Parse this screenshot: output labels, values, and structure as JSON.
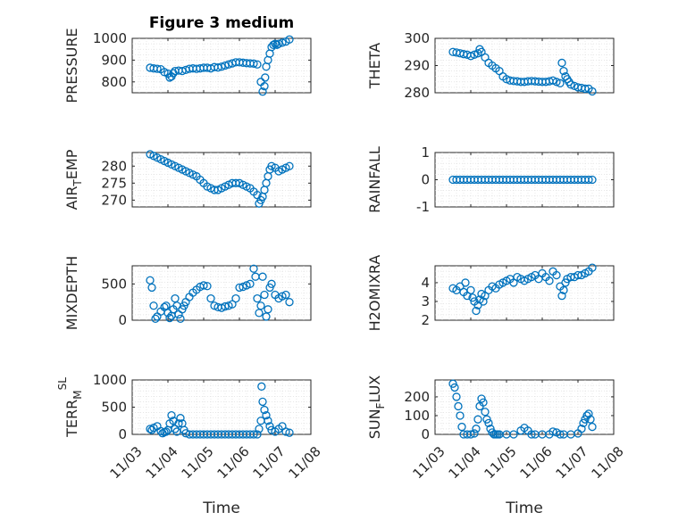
{
  "chart_data": [
    {
      "type": "scatter",
      "title": "Figure 3 medium",
      "ylabel": "PRESSURE",
      "ylabel_sub": "",
      "ylabel_sup": "",
      "ylabel_tail": "",
      "ylim": [
        750,
        1000
      ],
      "yticks": [
        800,
        900,
        1000
      ],
      "xlim": [
        0,
        5
      ],
      "xticks": [
        0,
        1,
        2,
        3,
        4,
        5
      ],
      "xlabel": "",
      "xticklabels": [],
      "grid": "on",
      "color": "#0072bd",
      "x": [
        0.5,
        0.6,
        0.7,
        0.8,
        0.9,
        1.0,
        1.05,
        1.1,
        1.15,
        1.2,
        1.3,
        1.4,
        1.5,
        1.6,
        1.7,
        1.8,
        1.9,
        2.0,
        2.1,
        2.2,
        2.3,
        2.4,
        2.5,
        2.6,
        2.7,
        2.8,
        2.9,
        3.0,
        3.1,
        3.2,
        3.3,
        3.4,
        3.5,
        3.6,
        3.65,
        3.7,
        3.72,
        3.75,
        3.8,
        3.85,
        3.9,
        3.95,
        4.0,
        4.05,
        4.1,
        4.2,
        4.3,
        4.4
      ],
      "y": [
        865,
        862,
        860,
        858,
        845,
        838,
        820,
        825,
        840,
        850,
        852,
        850,
        855,
        860,
        862,
        860,
        862,
        865,
        865,
        862,
        868,
        866,
        870,
        875,
        880,
        885,
        890,
        890,
        888,
        886,
        885,
        884,
        880,
        800,
        755,
        780,
        820,
        870,
        900,
        930,
        960,
        970,
        975,
        970,
        975,
        980,
        985,
        995
      ]
    },
    {
      "type": "scatter",
      "title": "",
      "ylabel": "THETA",
      "ylabel_sub": "",
      "ylabel_sup": "",
      "ylabel_tail": "",
      "ylim": [
        280,
        300
      ],
      "yticks": [
        280,
        290,
        300
      ],
      "xlim": [
        0,
        5
      ],
      "xticks": [
        0,
        1,
        2,
        3,
        4,
        5
      ],
      "xlabel": "",
      "xticklabels": [],
      "grid": "on",
      "color": "#0072bd",
      "x": [
        0.5,
        0.6,
        0.7,
        0.8,
        0.9,
        1.0,
        1.1,
        1.2,
        1.25,
        1.3,
        1.4,
        1.5,
        1.6,
        1.7,
        1.8,
        1.9,
        2.0,
        2.1,
        2.2,
        2.3,
        2.4,
        2.5,
        2.6,
        2.7,
        2.8,
        2.9,
        3.0,
        3.1,
        3.2,
        3.3,
        3.4,
        3.5,
        3.55,
        3.6,
        3.65,
        3.7,
        3.75,
        3.8,
        3.9,
        4.0,
        4.1,
        4.2,
        4.3,
        4.4
      ],
      "y": [
        295,
        294.8,
        294.5,
        294.2,
        294,
        293.5,
        294,
        294.5,
        296,
        295,
        293,
        291,
        290,
        289,
        288,
        286,
        285,
        284.5,
        284.3,
        284.2,
        284,
        284,
        284.2,
        284.3,
        284.2,
        284.1,
        284,
        284,
        284.2,
        284.5,
        284,
        283.5,
        291,
        288,
        286,
        285,
        284,
        283,
        282.5,
        282,
        281.8,
        281.5,
        281.5,
        280.5
      ]
    },
    {
      "type": "scatter",
      "title": "",
      "ylabel": "AIR",
      "ylabel_sub": "T",
      "ylabel_sup": "",
      "ylabel_tail": "EMP",
      "ylim": [
        268,
        284
      ],
      "yticks": [
        270,
        275,
        280
      ],
      "xlim": [
        0,
        5
      ],
      "xticks": [
        0,
        1,
        2,
        3,
        4,
        5
      ],
      "xlabel": "",
      "xticklabels": [],
      "grid": "on",
      "color": "#0072bd",
      "x": [
        0.5,
        0.6,
        0.7,
        0.8,
        0.9,
        1.0,
        1.1,
        1.2,
        1.3,
        1.4,
        1.5,
        1.6,
        1.7,
        1.8,
        1.9,
        2.0,
        2.1,
        2.2,
        2.3,
        2.4,
        2.5,
        2.6,
        2.7,
        2.8,
        2.9,
        3.0,
        3.1,
        3.2,
        3.3,
        3.4,
        3.5,
        3.55,
        3.6,
        3.65,
        3.7,
        3.75,
        3.8,
        3.85,
        3.9,
        4.0,
        4.1,
        4.2,
        4.3,
        4.4
      ],
      "y": [
        283.5,
        283,
        282.5,
        282,
        281.5,
        281,
        280.5,
        280,
        279.5,
        279,
        278.5,
        278,
        277.5,
        277,
        276,
        275,
        274,
        273.5,
        273,
        273,
        273.5,
        274,
        274.5,
        275,
        275,
        275,
        274.5,
        274,
        273.5,
        272.5,
        271.5,
        269,
        270,
        271,
        273,
        275,
        277,
        279,
        280,
        279.5,
        278.5,
        279,
        279.5,
        280
      ]
    },
    {
      "type": "scatter",
      "title": "",
      "ylabel": "RAINFALL",
      "ylabel_sub": "",
      "ylabel_sup": "",
      "ylabel_tail": "",
      "ylim": [
        -1,
        1
      ],
      "yticks": [
        -1,
        0,
        1
      ],
      "xlim": [
        0,
        5
      ],
      "xticks": [
        0,
        1,
        2,
        3,
        4,
        5
      ],
      "xlabel": "",
      "xticklabels": [],
      "grid": "on",
      "color": "#0072bd",
      "x": [
        0.5,
        0.6,
        0.7,
        0.8,
        0.9,
        1.0,
        1.1,
        1.2,
        1.3,
        1.4,
        1.5,
        1.6,
        1.7,
        1.8,
        1.9,
        2.0,
        2.1,
        2.2,
        2.3,
        2.4,
        2.5,
        2.6,
        2.7,
        2.8,
        2.9,
        3.0,
        3.1,
        3.2,
        3.3,
        3.4,
        3.5,
        3.6,
        3.7,
        3.8,
        3.9,
        4.0,
        4.1,
        4.2,
        4.3,
        4.4
      ],
      "y": [
        0,
        0,
        0,
        0,
        0,
        0,
        0,
        0,
        0,
        0,
        0,
        0,
        0,
        0,
        0,
        0,
        0,
        0,
        0,
        0,
        0,
        0,
        0,
        0,
        0,
        0,
        0,
        0,
        0,
        0,
        0,
        0,
        0,
        0,
        0,
        0,
        0,
        0,
        0,
        0
      ]
    },
    {
      "type": "scatter",
      "title": "",
      "ylabel": "MIXDEPTH",
      "ylabel_sub": "",
      "ylabel_sup": "",
      "ylabel_tail": "",
      "ylim": [
        0,
        750
      ],
      "yticks": [
        0,
        500
      ],
      "xlim": [
        0,
        5
      ],
      "xticks": [
        0,
        1,
        2,
        3,
        4,
        5
      ],
      "xlabel": "",
      "xticklabels": [],
      "grid": "on",
      "color": "#0072bd",
      "x": [
        0.5,
        0.55,
        0.6,
        0.65,
        0.7,
        0.8,
        0.9,
        0.95,
        1.0,
        1.05,
        1.1,
        1.15,
        1.2,
        1.25,
        1.3,
        1.35,
        1.4,
        1.45,
        1.5,
        1.6,
        1.7,
        1.8,
        1.9,
        2.0,
        2.1,
        2.2,
        2.3,
        2.4,
        2.5,
        2.6,
        2.7,
        2.8,
        2.9,
        3.0,
        3.1,
        3.2,
        3.3,
        3.4,
        3.45,
        3.5,
        3.55,
        3.6,
        3.65,
        3.7,
        3.75,
        3.8,
        3.85,
        3.9,
        4.0,
        4.1,
        4.2,
        4.3,
        4.4
      ],
      "y": [
        550,
        450,
        200,
        20,
        50,
        120,
        180,
        200,
        100,
        30,
        60,
        150,
        300,
        200,
        80,
        20,
        150,
        200,
        250,
        320,
        380,
        420,
        460,
        480,
        470,
        300,
        200,
        180,
        170,
        190,
        200,
        220,
        300,
        450,
        460,
        480,
        500,
        710,
        600,
        300,
        100,
        200,
        600,
        350,
        50,
        150,
        450,
        500,
        350,
        300,
        330,
        350,
        250
      ]
    },
    {
      "type": "scatter",
      "title": "",
      "ylabel": "H2OMIXRA",
      "ylabel_sub": "",
      "ylabel_sup": "",
      "ylabel_tail": "",
      "ylim": [
        2,
        4.9
      ],
      "yticks": [
        2,
        3,
        4
      ],
      "xlim": [
        0,
        5
      ],
      "xticks": [
        0,
        1,
        2,
        3,
        4,
        5
      ],
      "xlabel": "",
      "xticklabels": [],
      "grid": "on",
      "color": "#0072bd",
      "x": [
        0.5,
        0.6,
        0.7,
        0.8,
        0.85,
        0.9,
        1.0,
        1.05,
        1.1,
        1.15,
        1.2,
        1.25,
        1.3,
        1.35,
        1.4,
        1.5,
        1.6,
        1.7,
        1.8,
        1.9,
        2.0,
        2.1,
        2.2,
        2.3,
        2.4,
        2.5,
        2.6,
        2.7,
        2.8,
        2.9,
        3.0,
        3.1,
        3.2,
        3.3,
        3.4,
        3.5,
        3.55,
        3.6,
        3.65,
        3.7,
        3.8,
        3.9,
        4.0,
        4.1,
        4.2,
        4.3,
        4.4
      ],
      "y": [
        3.7,
        3.6,
        3.8,
        3.5,
        4.0,
        3.3,
        3.6,
        3.2,
        3.0,
        2.5,
        2.8,
        3.1,
        3.4,
        3.0,
        3.3,
        3.6,
        3.8,
        3.7,
        3.9,
        4.0,
        4.1,
        4.2,
        4.0,
        4.3,
        4.2,
        4.1,
        4.2,
        4.3,
        4.4,
        4.2,
        4.5,
        4.3,
        4.1,
        4.6,
        4.4,
        3.8,
        3.3,
        3.6,
        4.0,
        4.2,
        4.3,
        4.3,
        4.4,
        4.4,
        4.5,
        4.6,
        4.8
      ]
    },
    {
      "type": "scatter",
      "title": "",
      "ylabel": "TERR",
      "ylabel_sub": "M",
      "ylabel_sup": "SL",
      "ylabel_tail": "",
      "ylim": [
        0,
        1000
      ],
      "yticks": [
        0,
        500,
        1000
      ],
      "xlim": [
        0,
        5
      ],
      "xticks": [
        0,
        1,
        2,
        3,
        4,
        5
      ],
      "xlabel": "Time",
      "xticklabels": [
        "11/03",
        "11/04",
        "11/05",
        "11/06",
        "11/07",
        "11/08"
      ],
      "grid": "on",
      "color": "#0072bd",
      "x": [
        0.5,
        0.55,
        0.6,
        0.7,
        0.8,
        0.85,
        0.9,
        0.95,
        1.0,
        1.05,
        1.1,
        1.15,
        1.2,
        1.25,
        1.3,
        1.35,
        1.4,
        1.45,
        1.5,
        1.6,
        1.7,
        1.8,
        1.9,
        2.0,
        2.1,
        2.2,
        2.3,
        2.4,
        2.5,
        2.6,
        2.7,
        2.8,
        2.9,
        3.0,
        3.1,
        3.2,
        3.3,
        3.4,
        3.5,
        3.55,
        3.6,
        3.62,
        3.65,
        3.7,
        3.75,
        3.8,
        3.85,
        3.9,
        4.0,
        4.1,
        4.2,
        4.3,
        4.4
      ],
      "y": [
        100,
        80,
        120,
        150,
        60,
        20,
        40,
        50,
        80,
        200,
        350,
        250,
        100,
        50,
        200,
        300,
        200,
        80,
        20,
        0,
        0,
        0,
        0,
        0,
        0,
        0,
        0,
        0,
        0,
        0,
        0,
        0,
        0,
        0,
        0,
        0,
        0,
        0,
        0,
        100,
        250,
        880,
        600,
        450,
        350,
        250,
        150,
        80,
        50,
        100,
        150,
        50,
        30
      ]
    },
    {
      "type": "scatter",
      "title": "",
      "ylabel": "SUN",
      "ylabel_sub": "F",
      "ylabel_sup": "",
      "ylabel_tail": "LUX",
      "ylim": [
        0,
        290
      ],
      "yticks": [
        0,
        100,
        200
      ],
      "xlim": [
        0,
        5
      ],
      "xticks": [
        0,
        1,
        2,
        3,
        4,
        5
      ],
      "xlabel": "Time",
      "xticklabels": [
        "11/03",
        "11/04",
        "11/05",
        "11/06",
        "11/07",
        "11/08"
      ],
      "grid": "on",
      "color": "#0072bd",
      "x": [
        0.5,
        0.55,
        0.6,
        0.65,
        0.7,
        0.75,
        0.8,
        0.9,
        1.0,
        1.1,
        1.15,
        1.2,
        1.25,
        1.3,
        1.35,
        1.4,
        1.45,
        1.5,
        1.55,
        1.6,
        1.65,
        1.7,
        1.75,
        1.8,
        2.0,
        2.2,
        2.4,
        2.5,
        2.6,
        2.7,
        2.8,
        3.0,
        3.2,
        3.3,
        3.4,
        3.5,
        3.6,
        3.8,
        4.0,
        4.1,
        4.15,
        4.2,
        4.25,
        4.3,
        4.35,
        4.4
      ],
      "y": [
        270,
        250,
        200,
        150,
        100,
        40,
        0,
        0,
        0,
        5,
        30,
        80,
        150,
        190,
        170,
        120,
        80,
        60,
        30,
        10,
        0,
        0,
        0,
        0,
        0,
        0,
        20,
        35,
        20,
        0,
        0,
        0,
        0,
        15,
        10,
        0,
        0,
        0,
        5,
        30,
        60,
        80,
        100,
        110,
        80,
        40
      ]
    }
  ]
}
